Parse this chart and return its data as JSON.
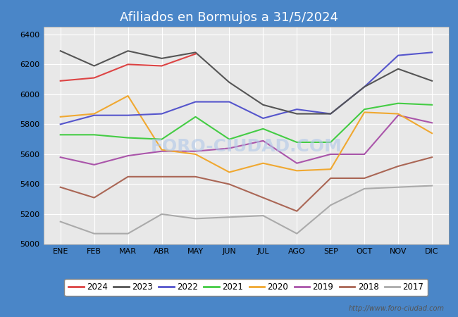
{
  "title": "Afiliados en Bormujos a 31/5/2024",
  "title_bg_color": "#4a86c8",
  "title_font_color": "white",
  "ylim": [
    5000,
    6450
  ],
  "yticks": [
    5000,
    5200,
    5400,
    5600,
    5800,
    6000,
    6200,
    6400
  ],
  "months": [
    "ENE",
    "FEB",
    "MAR",
    "ABR",
    "MAY",
    "JUN",
    "JUL",
    "AGO",
    "SEP",
    "OCT",
    "NOV",
    "DIC"
  ],
  "watermark": "http://www.foro-ciudad.com",
  "bg_color": "#4a86c8",
  "plot_bg_color": "#e8e8e8",
  "series": {
    "2024": {
      "color": "#dd4444",
      "data": [
        6090,
        6110,
        6200,
        6190,
        6270,
        null,
        null,
        null,
        null,
        null,
        null,
        null
      ]
    },
    "2023": {
      "color": "#555555",
      "data": [
        6290,
        6190,
        6290,
        6240,
        6280,
        6080,
        5930,
        5870,
        5870,
        6050,
        6170,
        6090
      ]
    },
    "2022": {
      "color": "#5555cc",
      "data": [
        5800,
        5860,
        5860,
        5870,
        5950,
        5950,
        5840,
        5900,
        5870,
        6050,
        6260,
        6280
      ]
    },
    "2021": {
      "color": "#44cc44",
      "data": [
        5730,
        5730,
        5710,
        5700,
        5850,
        5700,
        5770,
        5680,
        5680,
        5900,
        5940,
        5930
      ]
    },
    "2020": {
      "color": "#f0a830",
      "data": [
        5850,
        5870,
        5990,
        5630,
        5600,
        5480,
        5540,
        5490,
        5500,
        5880,
        5870,
        5740
      ]
    },
    "2019": {
      "color": "#aa55aa",
      "data": [
        5580,
        5530,
        5590,
        5620,
        5620,
        5640,
        5690,
        5540,
        5600,
        5600,
        5860,
        5810
      ]
    },
    "2018": {
      "color": "#aa6655",
      "data": [
        5380,
        5310,
        5450,
        5450,
        5450,
        5400,
        5310,
        5220,
        5440,
        5440,
        5520,
        5580
      ]
    },
    "2017": {
      "color": "#aaaaaa",
      "data": [
        5150,
        5070,
        5070,
        5200,
        5170,
        5180,
        5190,
        5070,
        5260,
        5370,
        5380,
        5390
      ]
    }
  }
}
